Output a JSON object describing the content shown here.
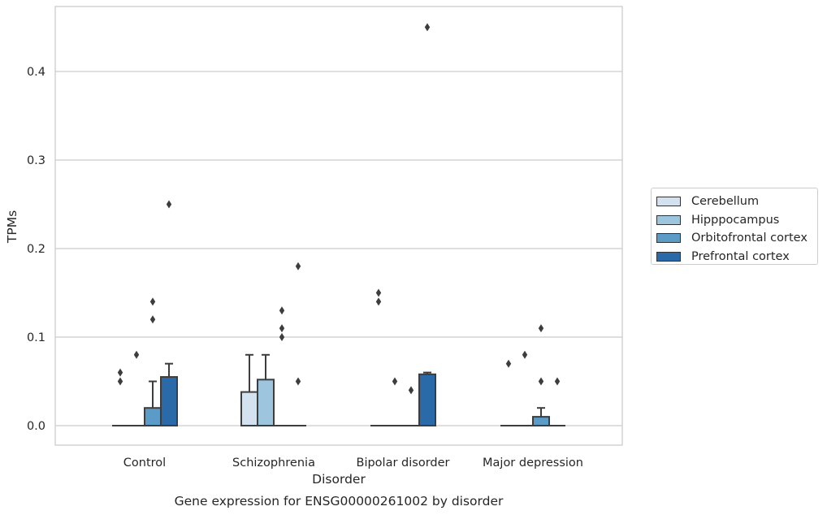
{
  "chart_data": {
    "type": "box",
    "title": "Gene expression for ENSG00000261002 by disorder",
    "xlabel": "Disorder",
    "ylabel": "TPMs",
    "ylim": [
      -0.022,
      0.475
    ],
    "yticks": [
      "0.0",
      "0.1",
      "0.2",
      "0.3",
      "0.4"
    ],
    "ytick_values": [
      0.0,
      0.1,
      0.2,
      0.3,
      0.4
    ],
    "grid": true,
    "legend_position": "right",
    "categories": [
      "Control",
      "Schizophrenia",
      "Bipolar disorder",
      "Major depression"
    ],
    "series": [
      {
        "name": "Cerebellum",
        "color": "#d4e1ef",
        "boxes": [
          {
            "q1": 0,
            "median": 0,
            "q3": 0,
            "whisker_low": 0,
            "whisker_high": 0,
            "outliers": [
              0.05,
              0.06
            ]
          },
          {
            "q1": 0,
            "median": 0,
            "q3": 0.038,
            "whisker_low": 0,
            "whisker_high": 0.08,
            "outliers": []
          },
          {
            "q1": 0,
            "median": 0,
            "q3": 0,
            "whisker_low": 0,
            "whisker_high": 0,
            "outliers": [
              0.14,
              0.15
            ]
          },
          {
            "q1": 0,
            "median": 0,
            "q3": 0,
            "whisker_low": 0,
            "whisker_high": 0,
            "outliers": [
              0.07
            ]
          }
        ]
      },
      {
        "name": "Hipppocampus",
        "color": "#9dc6de",
        "boxes": [
          {
            "q1": 0,
            "median": 0,
            "q3": 0,
            "whisker_low": 0,
            "whisker_high": 0,
            "outliers": [
              0.08
            ]
          },
          {
            "q1": 0,
            "median": 0,
            "q3": 0.052,
            "whisker_low": 0,
            "whisker_high": 0.08,
            "outliers": []
          },
          {
            "q1": 0,
            "median": 0,
            "q3": 0,
            "whisker_low": 0,
            "whisker_high": 0,
            "outliers": [
              0.05
            ]
          },
          {
            "q1": 0,
            "median": 0,
            "q3": 0,
            "whisker_low": 0,
            "whisker_high": 0,
            "outliers": [
              0.08
            ]
          }
        ]
      },
      {
        "name": "Orbitofrontal cortex",
        "color": "#5b9bc8",
        "boxes": [
          {
            "q1": 0,
            "median": 0,
            "q3": 0.02,
            "whisker_low": 0,
            "whisker_high": 0.05,
            "outliers": [
              0.12,
              0.14
            ]
          },
          {
            "q1": 0,
            "median": 0,
            "q3": 0,
            "whisker_low": 0,
            "whisker_high": 0,
            "outliers": [
              0.1,
              0.11,
              0.13
            ]
          },
          {
            "q1": 0,
            "median": 0,
            "q3": 0,
            "whisker_low": 0,
            "whisker_high": 0,
            "outliers": [
              0.04
            ]
          },
          {
            "q1": 0,
            "median": 0,
            "q3": 0.01,
            "whisker_low": 0,
            "whisker_high": 0.02,
            "outliers": [
              0.05,
              0.11
            ]
          }
        ]
      },
      {
        "name": "Prefrontal cortex",
        "color": "#2a6aa8",
        "boxes": [
          {
            "q1": 0,
            "median": 0,
            "q3": 0.055,
            "whisker_low": 0,
            "whisker_high": 0.07,
            "outliers": [
              0.25
            ]
          },
          {
            "q1": 0,
            "median": 0,
            "q3": 0,
            "whisker_low": 0,
            "whisker_high": 0,
            "outliers": [
              0.05,
              0.18
            ]
          },
          {
            "q1": 0,
            "median": 0,
            "q3": 0.058,
            "whisker_low": 0,
            "whisker_high": 0.06,
            "outliers": [
              0.45
            ]
          },
          {
            "q1": 0,
            "median": 0,
            "q3": 0,
            "whisker_low": 0,
            "whisker_high": 0,
            "outliers": [
              0.05
            ]
          }
        ]
      }
    ]
  }
}
